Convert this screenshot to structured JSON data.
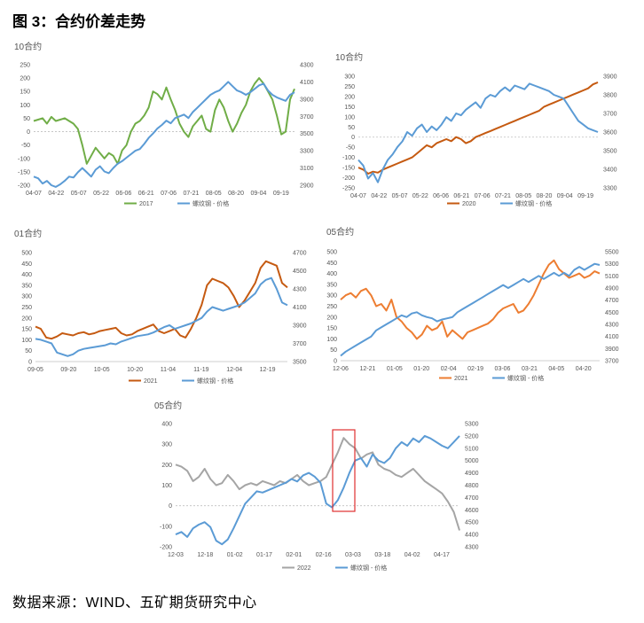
{
  "page": {
    "figure_title": "图 3：合约价差走势",
    "source": "数据来源：WIND、五矿期货研究中心"
  },
  "chart_data": [
    {
      "type": "line",
      "title": "10合约",
      "x_ticks": [
        "04-07",
        "04-22",
        "05-07",
        "05-22",
        "06-06",
        "06-21",
        "07-06",
        "07-21",
        "08-05",
        "08-20",
        "09-04",
        "09-19"
      ],
      "y_left": {
        "ticks": [
          -200,
          -150,
          -100,
          -50,
          0,
          50,
          100,
          150,
          200,
          250
        ],
        "range": [
          -200,
          250
        ]
      },
      "y_right": {
        "ticks": [
          2900,
          3100,
          3300,
          3500,
          3700,
          3900,
          4100,
          4300
        ],
        "range": [
          2900,
          4300
        ]
      },
      "series": [
        {
          "name": "2017",
          "axis": "left",
          "color": "#70AD47",
          "values": [
            40,
            45,
            50,
            30,
            55,
            40,
            45,
            50,
            40,
            30,
            10,
            -50,
            -120,
            -90,
            -60,
            -80,
            -100,
            -80,
            -90,
            -120,
            -70,
            -50,
            0,
            30,
            40,
            60,
            90,
            150,
            140,
            120,
            165,
            120,
            80,
            30,
            0,
            -20,
            20,
            40,
            60,
            10,
            0,
            80,
            120,
            90,
            40,
            0,
            30,
            70,
            100,
            150,
            180,
            200,
            180,
            150,
            120,
            60,
            -10,
            0,
            120,
            160
          ]
        },
        {
          "name": "螺纹钢 - 价格",
          "axis": "right",
          "color": "#5B9BD5",
          "values": [
            3000,
            2980,
            2920,
            2950,
            2900,
            2880,
            2910,
            2950,
            3000,
            2990,
            3050,
            3100,
            3050,
            3000,
            3080,
            3120,
            3060,
            3040,
            3100,
            3150,
            3180,
            3220,
            3260,
            3300,
            3320,
            3380,
            3450,
            3500,
            3560,
            3600,
            3650,
            3620,
            3680,
            3700,
            3720,
            3680,
            3750,
            3800,
            3850,
            3900,
            3950,
            3980,
            4000,
            4050,
            4100,
            4050,
            4000,
            3980,
            3950,
            3980,
            4020,
            4060,
            4080,
            4000,
            3950,
            3920,
            3900,
            3880,
            3950,
            3980
          ]
        }
      ]
    },
    {
      "type": "line",
      "title": "10合约",
      "x_ticks": [
        "04-07",
        "04-22",
        "05-07",
        "05-22",
        "06-06",
        "06-21",
        "07-06",
        "07-21",
        "08-05",
        "08-20",
        "09-04",
        "09-19"
      ],
      "y_left": {
        "ticks": [
          -250,
          -200,
          -150,
          -100,
          -50,
          0,
          50,
          100,
          150,
          200,
          250,
          300
        ],
        "range": [
          -250,
          300
        ]
      },
      "y_right": {
        "ticks": [
          3300,
          3400,
          3500,
          3600,
          3700,
          3800,
          3900
        ],
        "range": [
          3300,
          3900
        ]
      },
      "series": [
        {
          "name": "2020",
          "axis": "left",
          "color": "#C55A11",
          "values": [
            -150,
            -160,
            -180,
            -170,
            -175,
            -160,
            -150,
            -140,
            -130,
            -120,
            -110,
            -100,
            -80,
            -60,
            -40,
            -50,
            -30,
            -20,
            -10,
            -20,
            0,
            -10,
            -30,
            -20,
            0,
            10,
            20,
            30,
            40,
            50,
            60,
            70,
            80,
            90,
            100,
            110,
            120,
            130,
            150,
            160,
            170,
            180,
            190,
            200,
            210,
            220,
            230,
            240,
            260,
            270
          ]
        },
        {
          "name": "螺纹钢 - 价格",
          "axis": "right",
          "color": "#5B9BD5",
          "values": [
            3450,
            3420,
            3350,
            3380,
            3330,
            3400,
            3450,
            3480,
            3520,
            3550,
            3600,
            3580,
            3620,
            3640,
            3600,
            3630,
            3610,
            3640,
            3680,
            3660,
            3700,
            3690,
            3720,
            3740,
            3760,
            3730,
            3780,
            3800,
            3790,
            3820,
            3840,
            3820,
            3850,
            3840,
            3830,
            3860,
            3850,
            3840,
            3830,
            3820,
            3800,
            3790,
            3780,
            3740,
            3700,
            3660,
            3640,
            3620,
            3610,
            3600
          ]
        }
      ]
    },
    {
      "type": "line",
      "title": "01合约",
      "x_ticks": [
        "09-05",
        "09-20",
        "10-05",
        "10-20",
        "11-04",
        "11-19",
        "12-04",
        "12-19"
      ],
      "y_left": {
        "ticks": [
          0,
          50,
          100,
          150,
          200,
          250,
          300,
          350,
          400,
          450,
          500
        ],
        "range": [
          0,
          500
        ]
      },
      "y_right": {
        "ticks": [
          3500,
          3700,
          3900,
          4100,
          4300,
          4500,
          4700
        ],
        "range": [
          3500,
          4700
        ]
      },
      "series": [
        {
          "name": "2021",
          "axis": "left",
          "color": "#C55A11",
          "values": [
            160,
            150,
            110,
            105,
            115,
            130,
            125,
            120,
            130,
            135,
            125,
            130,
            140,
            145,
            150,
            155,
            130,
            120,
            125,
            140,
            150,
            160,
            170,
            140,
            130,
            140,
            150,
            120,
            110,
            150,
            200,
            260,
            350,
            380,
            370,
            360,
            340,
            300,
            250,
            280,
            320,
            360,
            430,
            460,
            450,
            440,
            360,
            340
          ]
        },
        {
          "name": "螺纹钢 - 价格",
          "axis": "right",
          "color": "#5B9BD5",
          "values": [
            3750,
            3740,
            3720,
            3700,
            3600,
            3580,
            3560,
            3580,
            3620,
            3640,
            3650,
            3660,
            3670,
            3680,
            3700,
            3690,
            3720,
            3740,
            3760,
            3780,
            3790,
            3800,
            3820,
            3850,
            3880,
            3900,
            3860,
            3880,
            3900,
            3920,
            3950,
            3980,
            4050,
            4100,
            4080,
            4060,
            4080,
            4100,
            4120,
            4150,
            4200,
            4250,
            4350,
            4400,
            4420,
            4300,
            4150,
            4120
          ]
        }
      ]
    },
    {
      "type": "line",
      "title": "05合约",
      "x_ticks": [
        "12-06",
        "12-21",
        "01-05",
        "01-20",
        "02-04",
        "02-19",
        "03-06",
        "03-21",
        "04-05",
        "04-20"
      ],
      "y_left": {
        "ticks": [
          0,
          50,
          100,
          150,
          200,
          250,
          300,
          350,
          400,
          450,
          500
        ],
        "range": [
          0,
          500
        ]
      },
      "y_right": {
        "ticks": [
          3700,
          3900,
          4100,
          4300,
          4500,
          4700,
          4900,
          5100,
          5300,
          5500
        ],
        "range": [
          3700,
          5500
        ]
      },
      "series": [
        {
          "name": "2021",
          "axis": "left",
          "color": "#ED7D31",
          "values": [
            280,
            300,
            310,
            290,
            320,
            330,
            300,
            250,
            260,
            230,
            280,
            200,
            180,
            150,
            130,
            100,
            120,
            160,
            140,
            150,
            180,
            110,
            140,
            120,
            100,
            130,
            140,
            150,
            160,
            170,
            190,
            220,
            240,
            250,
            260,
            220,
            230,
            260,
            300,
            350,
            400,
            440,
            460,
            420,
            400,
            380,
            390,
            400,
            380,
            390,
            410,
            400
          ]
        },
        {
          "name": "螺纹钢 - 价格",
          "axis": "right",
          "color": "#5B9BD5",
          "values": [
            3780,
            3850,
            3900,
            3950,
            4000,
            4050,
            4100,
            4200,
            4250,
            4300,
            4350,
            4400,
            4450,
            4420,
            4480,
            4500,
            4450,
            4420,
            4400,
            4350,
            4380,
            4400,
            4420,
            4500,
            4550,
            4600,
            4650,
            4700,
            4750,
            4800,
            4850,
            4900,
            4950,
            4900,
            4950,
            5000,
            5050,
            5000,
            5050,
            5100,
            5050,
            5100,
            5150,
            5100,
            5150,
            5100,
            5200,
            5250,
            5200,
            5250,
            5300,
            5280
          ]
        }
      ]
    },
    {
      "type": "line",
      "title": "05合约",
      "x_ticks": [
        "12-03",
        "12-18",
        "01-02",
        "01-17",
        "02-01",
        "02-16",
        "03-03",
        "03-18",
        "04-02",
        "04-17"
      ],
      "y_left": {
        "ticks": [
          -200,
          -100,
          0,
          100,
          200,
          300,
          400
        ],
        "range": [
          -200,
          400
        ]
      },
      "y_right": {
        "ticks": [
          4300,
          4400,
          4500,
          4600,
          4700,
          4800,
          4900,
          5000,
          5100,
          5200,
          5300
        ],
        "range": [
          4300,
          5300
        ]
      },
      "series": [
        {
          "name": "2022",
          "axis": "left",
          "color": "#A5A5A5",
          "values": [
            200,
            190,
            170,
            120,
            140,
            180,
            130,
            100,
            110,
            150,
            120,
            80,
            100,
            110,
            100,
            120,
            110,
            100,
            120,
            110,
            130,
            150,
            120,
            100,
            110,
            120,
            140,
            200,
            260,
            330,
            300,
            280,
            230,
            250,
            260,
            200,
            180,
            170,
            150,
            140,
            160,
            180,
            150,
            120,
            100,
            80,
            60,
            20,
            -30,
            -120
          ]
        },
        {
          "name": "螺纹钢 - 价格",
          "axis": "right",
          "color": "#5B9BD5",
          "values": [
            4400,
            4420,
            4380,
            4450,
            4480,
            4500,
            4460,
            4350,
            4320,
            4360,
            4450,
            4550,
            4650,
            4700,
            4750,
            4740,
            4760,
            4780,
            4800,
            4820,
            4850,
            4830,
            4880,
            4900,
            4870,
            4820,
            4650,
            4620,
            4680,
            4780,
            4900,
            5000,
            5020,
            4950,
            5050,
            5000,
            4980,
            5020,
            5100,
            5150,
            5120,
            5180,
            5150,
            5200,
            5180,
            5150,
            5120,
            5100,
            5150,
            5200
          ]
        }
      ]
    }
  ]
}
